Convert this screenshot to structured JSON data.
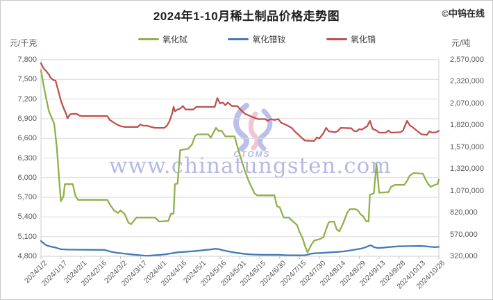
{
  "header": {
    "title": "2024年1-10月稀土制品价格走势图",
    "brand": "©中钨在线"
  },
  "watermark": {
    "text": "www.chinatungsten.com",
    "logo_text": "CTOMS"
  },
  "axes": {
    "left_unit": "元/千克",
    "right_unit": "元/吨"
  },
  "chart_data": {
    "type": "line",
    "title": "2024年1-10月稀土制品价格走势图",
    "grid": true,
    "legend_position": "top",
    "x_range_days": [
      0,
      300
    ],
    "x_tick_labels": [
      "2024/1/2",
      "2024/1/17",
      "2024/2/1",
      "2024/2/16",
      "2024/3/2",
      "2024/3/17",
      "2024/4/1",
      "2024/4/16",
      "2024/5/1",
      "2024/5/16",
      "2024/5/31",
      "2024/6/15",
      "2024/6/30",
      "2024/7/15",
      "2024/7/30",
      "2024/8/14",
      "2024/8/29",
      "2024/9/13",
      "2024/9/28",
      "2024/10/13",
      "2024/10/28"
    ],
    "left_axis": {
      "unit": "元/千克",
      "min": 4800,
      "max": 7800,
      "step": 300,
      "tick_labels": [
        "7,800",
        "7,500",
        "7,200",
        "6,900",
        "6,600",
        "6,300",
        "6,000",
        "5,700",
        "5,400",
        "5,100",
        "4,800"
      ]
    },
    "right_axis": {
      "unit": "元/吨",
      "min": 320000,
      "max": 2570000,
      "step": 250000,
      "tick_labels": [
        "2,570,000",
        "2,320,000",
        "2,070,000",
        "1,820,000",
        "1,570,000",
        "1,320,000",
        "1,070,000",
        "820,000",
        "570,000",
        "320,000"
      ]
    },
    "colors": {
      "terbium": "#90b04a",
      "prnd": "#4579b8",
      "dysprosium": "#c0504d",
      "gridline": "#d9d9d9",
      "watermark": "#98a0da"
    },
    "series": [
      {
        "key": "terbium-oxide",
        "name": "氧化铽",
        "color": "#90b04a",
        "axis": "left",
        "unit": "元/千克",
        "points": [
          [
            0,
            7640
          ],
          [
            3,
            7300
          ],
          [
            6,
            7010
          ],
          [
            8,
            6920
          ],
          [
            10,
            6820
          ],
          [
            12,
            6450
          ],
          [
            14,
            5900
          ],
          [
            15,
            5640
          ],
          [
            17,
            5720
          ],
          [
            18,
            5900
          ],
          [
            24,
            5900
          ],
          [
            26,
            5720
          ],
          [
            28,
            5660
          ],
          [
            50,
            5660
          ],
          [
            52,
            5590
          ],
          [
            55,
            5500
          ],
          [
            58,
            5460
          ],
          [
            60,
            5500
          ],
          [
            63,
            5450
          ],
          [
            66,
            5310
          ],
          [
            68,
            5290
          ],
          [
            72,
            5390
          ],
          [
            86,
            5390
          ],
          [
            89,
            5330
          ],
          [
            96,
            5340
          ],
          [
            98,
            5450
          ],
          [
            100,
            5450
          ],
          [
            101,
            5900
          ],
          [
            103,
            5910
          ],
          [
            105,
            6420
          ],
          [
            111,
            6440
          ],
          [
            114,
            6510
          ],
          [
            116,
            6630
          ],
          [
            118,
            6660
          ],
          [
            126,
            6660
          ],
          [
            128,
            6610
          ],
          [
            132,
            6760
          ],
          [
            134,
            6710
          ],
          [
            136,
            6720
          ],
          [
            139,
            6630
          ],
          [
            146,
            6630
          ],
          [
            148,
            6480
          ],
          [
            151,
            6280
          ],
          [
            154,
            6090
          ],
          [
            157,
            5930
          ],
          [
            161,
            5760
          ],
          [
            163,
            5730
          ],
          [
            176,
            5730
          ],
          [
            178,
            5560
          ],
          [
            180,
            5550
          ],
          [
            183,
            5390
          ],
          [
            187,
            5390
          ],
          [
            190,
            5330
          ],
          [
            193,
            5280
          ],
          [
            195,
            5170
          ],
          [
            197,
            5090
          ],
          [
            199,
            4960
          ],
          [
            201,
            4860
          ],
          [
            204,
            4980
          ],
          [
            206,
            5040
          ],
          [
            210,
            5060
          ],
          [
            213,
            5090
          ],
          [
            215,
            5210
          ],
          [
            217,
            5320
          ],
          [
            221,
            5330
          ],
          [
            223,
            5210
          ],
          [
            225,
            5180
          ],
          [
            228,
            5310
          ],
          [
            231,
            5470
          ],
          [
            233,
            5520
          ],
          [
            237,
            5520
          ],
          [
            239,
            5500
          ],
          [
            241,
            5440
          ],
          [
            243,
            5410
          ],
          [
            245,
            5340
          ],
          [
            247,
            5330
          ],
          [
            248,
            5740
          ],
          [
            251,
            5760
          ],
          [
            253,
            6210
          ],
          [
            255,
            5770
          ],
          [
            262,
            5780
          ],
          [
            264,
            5860
          ],
          [
            267,
            5890
          ],
          [
            274,
            5890
          ],
          [
            276,
            5950
          ],
          [
            278,
            6030
          ],
          [
            281,
            6070
          ],
          [
            288,
            6060
          ],
          [
            290,
            5970
          ],
          [
            292,
            5900
          ],
          [
            294,
            5860
          ],
          [
            297,
            5890
          ],
          [
            299,
            5900
          ],
          [
            300,
            5970
          ]
        ]
      },
      {
        "key": "prnd-oxide",
        "name": "氧化镨钕",
        "color": "#4579b8",
        "axis": "right",
        "unit": "元/吨",
        "points": [
          [
            0,
            495000
          ],
          [
            3,
            455000
          ],
          [
            5,
            440000
          ],
          [
            8,
            428000
          ],
          [
            10,
            423000
          ],
          [
            13,
            410000
          ],
          [
            15,
            400000
          ],
          [
            20,
            396000
          ],
          [
            30,
            395000
          ],
          [
            48,
            392000
          ],
          [
            52,
            375000
          ],
          [
            55,
            365000
          ],
          [
            58,
            358000
          ],
          [
            62,
            352000
          ],
          [
            66,
            345000
          ],
          [
            70,
            338000
          ],
          [
            74,
            333000
          ],
          [
            78,
            328000
          ],
          [
            81,
            326000
          ],
          [
            85,
            330000
          ],
          [
            90,
            336000
          ],
          [
            95,
            345000
          ],
          [
            100,
            358000
          ],
          [
            104,
            366000
          ],
          [
            108,
            370000
          ],
          [
            113,
            376000
          ],
          [
            118,
            382000
          ],
          [
            123,
            390000
          ],
          [
            128,
            398000
          ],
          [
            131,
            406000
          ],
          [
            134,
            402000
          ],
          [
            137,
            390000
          ],
          [
            140,
            380000
          ],
          [
            144,
            368000
          ],
          [
            148,
            358000
          ],
          [
            152,
            350000
          ],
          [
            156,
            344000
          ],
          [
            160,
            340000
          ],
          [
            166,
            337000
          ],
          [
            180,
            336000
          ],
          [
            184,
            333000
          ],
          [
            188,
            331000
          ],
          [
            194,
            330000
          ],
          [
            199,
            332000
          ],
          [
            202,
            342000
          ],
          [
            204,
            350000
          ],
          [
            208,
            356000
          ],
          [
            212,
            358000
          ],
          [
            216,
            362000
          ],
          [
            220,
            366000
          ],
          [
            224,
            370000
          ],
          [
            228,
            376000
          ],
          [
            232,
            384000
          ],
          [
            236,
            394000
          ],
          [
            239,
            402000
          ],
          [
            242,
            410000
          ],
          [
            245,
            425000
          ],
          [
            247,
            438000
          ],
          [
            249,
            446000
          ],
          [
            251,
            424000
          ],
          [
            254,
            415000
          ],
          [
            258,
            418000
          ],
          [
            262,
            424000
          ],
          [
            266,
            430000
          ],
          [
            270,
            434000
          ],
          [
            278,
            436000
          ],
          [
            286,
            438000
          ],
          [
            290,
            434000
          ],
          [
            294,
            428000
          ],
          [
            297,
            424000
          ],
          [
            300,
            428000
          ]
        ]
      },
      {
        "key": "dysprosium-oxide",
        "name": "氧化镝",
        "color": "#c0504d",
        "axis": "right",
        "unit": "元/吨",
        "points": [
          [
            0,
            2530000
          ],
          [
            2,
            2470000
          ],
          [
            4,
            2440000
          ],
          [
            6,
            2400000
          ],
          [
            7,
            2370000
          ],
          [
            9,
            2340000
          ],
          [
            11,
            2330000
          ],
          [
            13,
            2220000
          ],
          [
            15,
            2100000
          ],
          [
            17,
            2020000
          ],
          [
            19,
            1950000
          ],
          [
            20,
            1900000
          ],
          [
            22,
            1945000
          ],
          [
            24,
            1950000
          ],
          [
            27,
            1950000
          ],
          [
            29,
            1930000
          ],
          [
            31,
            1925000
          ],
          [
            50,
            1925000
          ],
          [
            52,
            1880000
          ],
          [
            54,
            1860000
          ],
          [
            57,
            1830000
          ],
          [
            60,
            1810000
          ],
          [
            63,
            1800000
          ],
          [
            73,
            1800000
          ],
          [
            75,
            1830000
          ],
          [
            77,
            1815000
          ],
          [
            80,
            1815000
          ],
          [
            83,
            1800000
          ],
          [
            86,
            1790000
          ],
          [
            93,
            1790000
          ],
          [
            95,
            1815000
          ],
          [
            97,
            1870000
          ],
          [
            99,
            1960000
          ],
          [
            100,
            2030000
          ],
          [
            101,
            1980000
          ],
          [
            103,
            2000000
          ],
          [
            105,
            2010000
          ],
          [
            107,
            2040000
          ],
          [
            109,
            2000000
          ],
          [
            115,
            2000000
          ],
          [
            117,
            2030000
          ],
          [
            131,
            2030000
          ],
          [
            133,
            2130000
          ],
          [
            135,
            2070000
          ],
          [
            137,
            2080000
          ],
          [
            139,
            2050000
          ],
          [
            141,
            2080000
          ],
          [
            144,
            2040000
          ],
          [
            148,
            2040000
          ],
          [
            151,
            1990000
          ],
          [
            154,
            1950000
          ],
          [
            157,
            1930000
          ],
          [
            160,
            1910000
          ],
          [
            164,
            1890000
          ],
          [
            169,
            1890000
          ],
          [
            171,
            1870000
          ],
          [
            173,
            1890000
          ],
          [
            176,
            1880000
          ],
          [
            179,
            1890000
          ],
          [
            181,
            1850000
          ],
          [
            184,
            1830000
          ],
          [
            186,
            1815000
          ],
          [
            189,
            1790000
          ],
          [
            192,
            1740000
          ],
          [
            195,
            1700000
          ],
          [
            197,
            1670000
          ],
          [
            199,
            1645000
          ],
          [
            206,
            1640000
          ],
          [
            208,
            1680000
          ],
          [
            210,
            1670000
          ],
          [
            213,
            1730000
          ],
          [
            215,
            1790000
          ],
          [
            217,
            1750000
          ],
          [
            222,
            1740000
          ],
          [
            224,
            1755000
          ],
          [
            226,
            1790000
          ],
          [
            234,
            1785000
          ],
          [
            236,
            1755000
          ],
          [
            238,
            1750000
          ],
          [
            240,
            1775000
          ],
          [
            242,
            1770000
          ],
          [
            246,
            1810000
          ],
          [
            248,
            1870000
          ],
          [
            250,
            1780000
          ],
          [
            253,
            1760000
          ],
          [
            255,
            1735000
          ],
          [
            260,
            1735000
          ],
          [
            262,
            1760000
          ],
          [
            264,
            1735000
          ],
          [
            271,
            1740000
          ],
          [
            273,
            1760000
          ],
          [
            276,
            1870000
          ],
          [
            278,
            1820000
          ],
          [
            280,
            1800000
          ],
          [
            284,
            1750000
          ],
          [
            287,
            1715000
          ],
          [
            291,
            1710000
          ],
          [
            293,
            1750000
          ],
          [
            295,
            1735000
          ],
          [
            298,
            1740000
          ],
          [
            300,
            1755000
          ]
        ]
      }
    ]
  }
}
